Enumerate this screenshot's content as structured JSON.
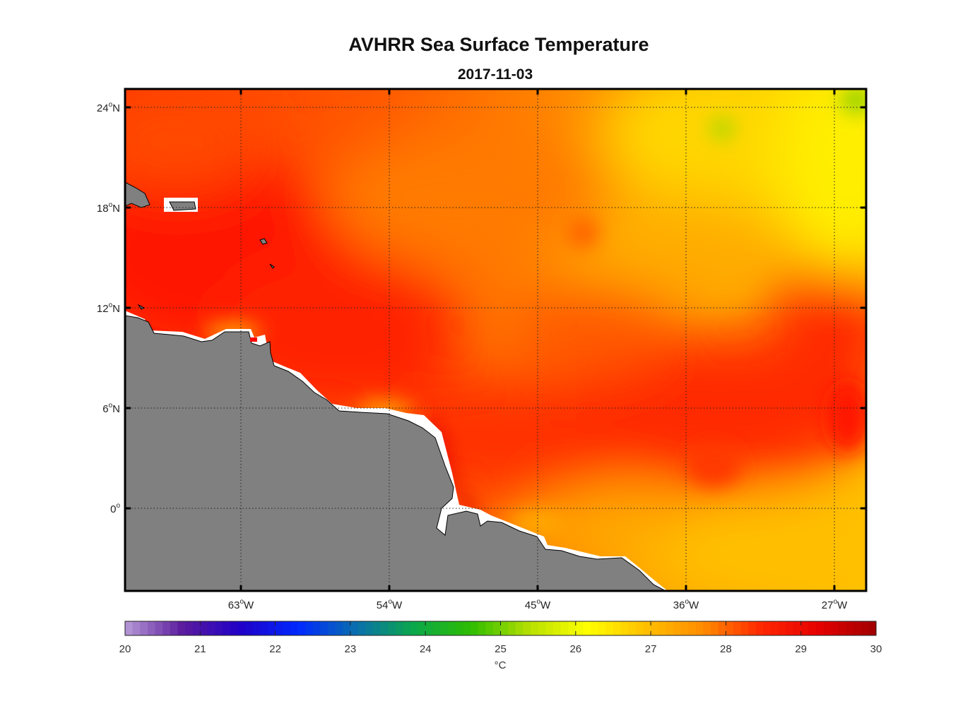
{
  "title": "AVHRR Sea Surface Temperature",
  "subtitle": "2017-11-03",
  "map": {
    "lat_ticks": [
      {
        "value": 24,
        "label": "24",
        "hemi": "N"
      },
      {
        "value": 18,
        "label": "18",
        "hemi": "N"
      },
      {
        "value": 12,
        "label": "12",
        "hemi": "N"
      },
      {
        "value": 6,
        "label": "6",
        "hemi": "N"
      },
      {
        "value": 0,
        "label": "0",
        "hemi": ""
      }
    ],
    "lon_ticks": [
      {
        "value": -63,
        "label": "63",
        "hemi": "W"
      },
      {
        "value": -54,
        "label": "54",
        "hemi": "W"
      },
      {
        "value": -45,
        "label": "45",
        "hemi": "W"
      },
      {
        "value": -36,
        "label": "36",
        "hemi": "W"
      },
      {
        "value": -27,
        "label": "27",
        "hemi": "W"
      }
    ],
    "land_color": "#808080",
    "colormap": [
      "#b79ad6",
      "#5a1b9e",
      "#1f00c8",
      "#0028ff",
      "#0a6fae",
      "#0aa84a",
      "#2fbd00",
      "#b7e000",
      "#ffff00",
      "#ffc000",
      "#ff8c00",
      "#ff2800",
      "#e60000",
      "#a00000"
    ]
  },
  "colorbar": {
    "min": 20,
    "max": 30,
    "tick_labels": [
      "20",
      "21",
      "22",
      "23",
      "24",
      "25",
      "26",
      "27",
      "28",
      "29",
      "30"
    ],
    "unit_label": "°C"
  }
}
